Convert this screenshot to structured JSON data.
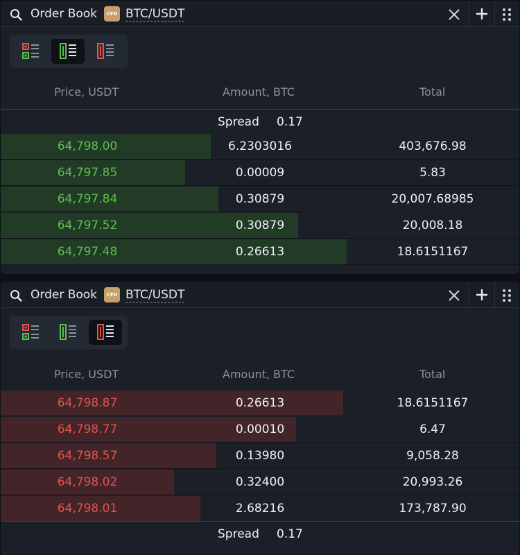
{
  "panels": [
    {
      "title": "Order Book",
      "badge": "CFD",
      "pair": "BTC/USDT",
      "active_mode": "bids",
      "columns": {
        "price": "Price, USDT",
        "amount": "Amount, BTC",
        "total": "Total"
      },
      "spread": {
        "label": "Spread",
        "value": "0.17"
      },
      "side": "bid",
      "rows": [
        {
          "price": "64,798.00",
          "amount": "6.2303016",
          "total": "403,676.98",
          "depth": 0.405
        },
        {
          "price": "64,797.85",
          "amount": "0.00009",
          "total": "5.83",
          "depth": 0.355
        },
        {
          "price": "64,797.84",
          "amount": "0.30879",
          "total": "20,007.68985",
          "depth": 0.42
        },
        {
          "price": "64,797.52",
          "amount": "0.30879",
          "total": "20,008.18",
          "depth": 0.573
        },
        {
          "price": "64,797.48",
          "amount": "0.26613",
          "total": "18.6151167",
          "depth": 0.667
        }
      ]
    },
    {
      "title": "Order Book",
      "badge": "CFD",
      "pair": "BTC/USDT",
      "active_mode": "asks",
      "columns": {
        "price": "Price, USDT",
        "amount": "Amount, BTC",
        "total": "Total"
      },
      "spread": {
        "label": "Spread",
        "value": "0.17"
      },
      "side": "ask",
      "rows": [
        {
          "price": "64,798.87",
          "amount": "0.26613",
          "total": "18.6151167",
          "depth": 0.661
        },
        {
          "price": "64,798.77",
          "amount": "0.00010",
          "total": "6.47",
          "depth": 0.57
        },
        {
          "price": "64,798.57",
          "amount": "0.13980",
          "total": "9,058.28",
          "depth": 0.416
        },
        {
          "price": "64,798.02",
          "amount": "0.32400",
          "total": "20,993.26",
          "depth": 0.334
        },
        {
          "price": "64,798.01",
          "amount": "2.68216",
          "total": "173,787.90",
          "depth": 0.385
        }
      ]
    }
  ],
  "icons": {
    "search": "search-icon",
    "close": "close-icon",
    "add": "plus-icon",
    "menu": "drag-dots-icon",
    "mode_both": "orderbook-both-icon",
    "mode_bids": "orderbook-bids-icon",
    "mode_asks": "orderbook-asks-icon"
  },
  "colors": {
    "bid": "#5cc04d",
    "ask": "#e5534b",
    "bid_fill": "#213b26",
    "ask_fill": "#432428",
    "badge": "#c7a06b"
  }
}
